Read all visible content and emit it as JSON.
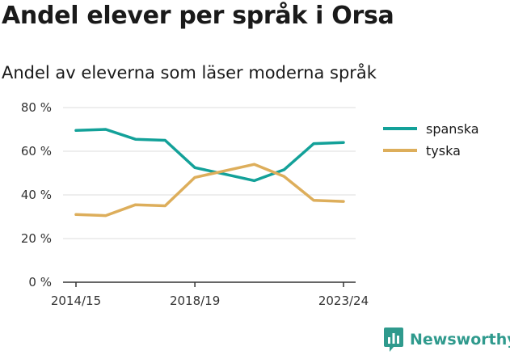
{
  "title": "Andel elever per språk i Orsa",
  "subtitle": "Andel av eleverna som läser moderna språk",
  "brand": {
    "name": "Newsworthy"
  },
  "colors": {
    "spanska": "#13a199",
    "tyska": "#ddae5b",
    "grid": "#dddddd",
    "axis": "#333333",
    "brand": "#2f9a8d"
  },
  "chart_data": {
    "type": "line",
    "title": "Andel elever per språk i Orsa",
    "subtitle": "Andel av eleverna som läser moderna språk",
    "x": [
      "2014/15",
      "2015/16",
      "2016/17",
      "2017/18",
      "2018/19",
      "2019/20",
      "2020/21",
      "2021/22",
      "2022/23",
      "2023/24"
    ],
    "x_tick_labels": [
      "2014/15",
      "2018/19",
      "2023/24"
    ],
    "y_ticks": [
      0,
      20,
      40,
      60,
      80
    ],
    "y_tick_labels": [
      "0 %",
      "20 %",
      "40 %",
      "60 %",
      "80 %"
    ],
    "ylim": [
      0,
      80
    ],
    "grid": true,
    "legend": "top-right",
    "series": [
      {
        "name": "spanska",
        "values": [
          69.5,
          70.0,
          65.5,
          65.0,
          52.5,
          49.5,
          46.5,
          51.5,
          63.5,
          64.0
        ]
      },
      {
        "name": "tyska",
        "values": [
          31.0,
          30.5,
          35.5,
          35.0,
          48.0,
          51.0,
          54.0,
          48.5,
          37.5,
          37.0
        ]
      }
    ]
  }
}
